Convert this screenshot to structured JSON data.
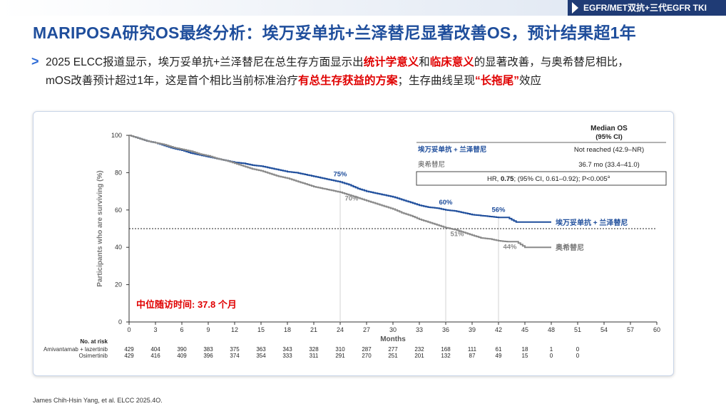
{
  "header": {
    "tag": "EGFR/MET双抗+三代EGFR TKI"
  },
  "title": "MARIPOSA研究OS最终分析：埃万妥单抗+兰泽替尼显著改善OS，预计结果超1年",
  "paragraph": {
    "p1": "2025 ELCC报道显示，埃万妥单抗+兰泽替尼在总生存方面显示出",
    "p1_red1": "统计学意义",
    "p1_mid": "和",
    "p1_red2": "临床意义",
    "p1_end": "的显著改善，与奥希替尼相比，",
    "p2": "mOS改善预计超过1年，这是首个相比当前标准治疗",
    "p2_red": "有总生存获益的方案",
    "p2_sep": "；生存曲线呈现",
    "p2_red2": "“长拖尾”",
    "p2_end": "效应"
  },
  "chart_data": {
    "type": "line",
    "xlabel": "Months",
    "ylabel": "Participants who are surviving (%)",
    "xlim": [
      0,
      60
    ],
    "ylim": [
      0,
      100
    ],
    "x_ticks": [
      0,
      3,
      6,
      9,
      12,
      15,
      18,
      21,
      24,
      27,
      30,
      33,
      36,
      39,
      42,
      45,
      48,
      51,
      54,
      57,
      60
    ],
    "y_ticks": [
      0,
      20,
      40,
      60,
      80,
      100
    ],
    "reference_line_y": 50,
    "median_followup": "中位随访时间: 37.8 个月",
    "series": [
      {
        "name": "埃万妥单抗 + 兰泽替尼",
        "color": "#1f4e9c",
        "x": [
          0,
          1,
          2,
          3,
          4,
          5,
          6,
          7,
          8,
          9,
          10,
          11,
          12,
          13,
          14,
          15,
          16,
          17,
          18,
          19,
          20,
          21,
          22,
          23,
          24,
          25,
          26,
          27,
          28,
          29,
          30,
          31,
          32,
          33,
          34,
          35,
          36,
          37,
          38,
          39,
          40,
          41,
          42,
          43,
          44,
          45,
          46,
          47,
          48
        ],
        "values": [
          100,
          98.5,
          97,
          96,
          94.5,
          93,
          92,
          90.5,
          89.5,
          88.5,
          87.5,
          86.5,
          85.5,
          85,
          84,
          83.5,
          82.5,
          81.5,
          80.5,
          80,
          79,
          78,
          77,
          76,
          75,
          73.5,
          71.5,
          70,
          69,
          68,
          67,
          65.5,
          64,
          62.5,
          61.5,
          61,
          60,
          59.5,
          58.5,
          57.5,
          57,
          56.5,
          56,
          56,
          53.5,
          53.5,
          53.5,
          53.5,
          53.5
        ]
      },
      {
        "name": "奥希替尼",
        "color": "#8a8a8a",
        "x": [
          0,
          1,
          2,
          3,
          4,
          5,
          6,
          7,
          8,
          9,
          10,
          11,
          12,
          13,
          14,
          15,
          16,
          17,
          18,
          19,
          20,
          21,
          22,
          23,
          24,
          25,
          26,
          27,
          28,
          29,
          30,
          31,
          32,
          33,
          34,
          35,
          36,
          37,
          38,
          39,
          40,
          41,
          42,
          43,
          44,
          45,
          46,
          47,
          48
        ],
        "values": [
          100,
          98.5,
          97,
          96,
          95,
          93.5,
          92.5,
          91.5,
          90,
          89,
          87.5,
          86.5,
          85,
          83.5,
          82,
          81,
          79.5,
          78,
          77,
          75.5,
          74,
          72.5,
          71.5,
          70.5,
          69.5,
          68,
          66.5,
          65,
          63.5,
          62,
          60.5,
          58.5,
          57,
          55,
          53.5,
          52,
          50.5,
          49.5,
          48,
          46.5,
          45,
          44.5,
          43.5,
          43,
          43,
          40,
          40,
          40,
          40
        ]
      }
    ],
    "point_labels": [
      {
        "series": 0,
        "x": 24,
        "y": 75,
        "text": "75%"
      },
      {
        "series": 0,
        "x": 36,
        "y": 60,
        "text": "60%"
      },
      {
        "series": 0,
        "x": 42,
        "y": 56,
        "text": "56%"
      },
      {
        "series": 1,
        "x": 24,
        "y": 70,
        "text": "70%"
      },
      {
        "series": 1,
        "x": 36,
        "y": 51,
        "text": "51%"
      },
      {
        "series": 1,
        "x": 42,
        "y": 44,
        "text": "44%"
      }
    ],
    "landmark_x": [
      24,
      36,
      42
    ],
    "median_os_table": {
      "header": "Median OS",
      "header2": "(95% CI)",
      "rows": [
        {
          "label": "埃万妥单抗 + 兰泽替尼",
          "value": "Not reached (42.9–NR)"
        },
        {
          "label": "奥希替尼",
          "value": "36.7 mo (33.4–41.0)"
        }
      ],
      "hr_prefix": "HR, ",
      "hr_value": "0.75",
      "hr_suffix": "; (95% CI, 0.61–0.92); P<0.005",
      "hr_sup": "a"
    },
    "at_risk": {
      "title": "No. at risk",
      "rows": [
        {
          "label": "Amivantamab + lazertinib",
          "values": [
            429,
            404,
            390,
            383,
            375,
            363,
            343,
            328,
            310,
            287,
            277,
            232,
            168,
            111,
            61,
            18,
            1,
            0
          ]
        },
        {
          "label": "Osimertinib",
          "values": [
            429,
            416,
            409,
            396,
            374,
            354,
            333,
            311,
            291,
            270,
            251,
            201,
            132,
            87,
            49,
            15,
            0,
            0
          ]
        }
      ]
    }
  },
  "source": "James Chih-Hsin Yang,  et al. ELCC 2025.4O."
}
